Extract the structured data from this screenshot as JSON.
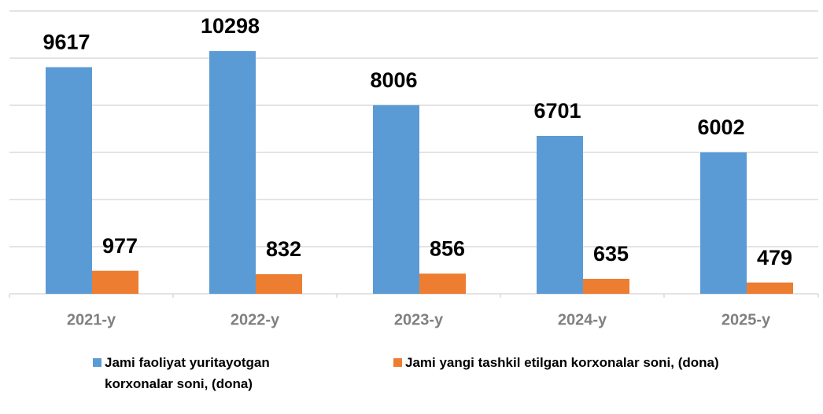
{
  "chart_data": {
    "type": "bar",
    "categories": [
      "2021-y",
      "2022-y",
      "2023-y",
      "2024-y",
      "2025-y"
    ],
    "series": [
      {
        "name": "Jami faoliyat yuritayotgan korxonalar soni, (dona)",
        "color": "#5b9bd5",
        "values": [
          9617,
          10298,
          8006,
          6701,
          6002
        ]
      },
      {
        "name": "Jami yangi tashkil etilgan korxonalar soni, (dona)",
        "color": "#ed7d31",
        "values": [
          977,
          832,
          856,
          635,
          479
        ]
      }
    ],
    "ylim": [
      0,
      12000
    ],
    "yticks": [
      0,
      2000,
      4000,
      6000,
      8000,
      10000,
      12000
    ],
    "grid": true,
    "legend": "bottom"
  }
}
